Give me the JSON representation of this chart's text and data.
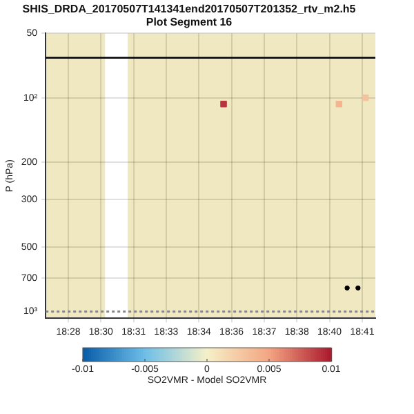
{
  "chart_data": {
    "type": "scatter",
    "title": "SHIS_DRDA_20170507T141341end20170507T201352_rtv_m2.h5",
    "subtitle": "Plot Segment 16",
    "ylabel": "P (hPa)",
    "clabel": "SO2VMR - Model SO2VMR",
    "log": "y",
    "grid": true,
    "legend": false,
    "xlim": [
      18.4555,
      18.6986
    ],
    "xticks": [
      {
        "value": 18.4722,
        "label": "18:28"
      },
      {
        "value": 18.4963,
        "label": "18:30"
      },
      {
        "value": 18.5204,
        "label": "18:31"
      },
      {
        "value": 18.5444,
        "label": "18:33"
      },
      {
        "value": 18.5685,
        "label": "18:34"
      },
      {
        "value": 18.5926,
        "label": "18:36"
      },
      {
        "value": 18.6167,
        "label": "18:37"
      },
      {
        "value": 18.6407,
        "label": "18:38"
      },
      {
        "value": 18.6648,
        "label": "18:40"
      },
      {
        "value": 18.6889,
        "label": "18:41"
      }
    ],
    "ylim": [
      1075,
      50
    ],
    "yticks": [
      50,
      {
        "value": 100,
        "label": "10²"
      },
      200,
      300,
      500,
      700,
      {
        "value": 1000,
        "label": "10³"
      }
    ],
    "clim": [
      -0.01,
      0.01
    ],
    "cticks": [
      -0.01,
      -0.005,
      0,
      0.005,
      0.01
    ],
    "bands": [
      {
        "axis": "x",
        "from": 18.4555,
        "to": 18.4993,
        "color": "#efe8c0"
      },
      {
        "axis": "x",
        "from": 18.516,
        "to": 18.6986,
        "color": "#efe8c0"
      }
    ],
    "ref_lines": [
      {
        "axis": "y",
        "value": 1000,
        "color": "#888888",
        "line_style": "dotted"
      }
    ],
    "series": [
      {
        "type": "line",
        "color": "#000000",
        "x": [
          18.4555,
          18.6986
        ],
        "values": [
          65,
          65
        ],
        "marker": "none"
      },
      {
        "marker": "square",
        "x": [
          18.5867,
          18.6718,
          18.6913
        ],
        "values": [
          107,
          107,
          100
        ],
        "cvalues": [
          0.009,
          0.004,
          0.003
        ],
        "colors": [
          "#b9353e",
          "#f4b490",
          "#f4c39e"
        ]
      },
      {
        "marker": "circle",
        "color": "#000000",
        "x": [
          18.6778,
          18.6858
        ],
        "values": [
          776,
          776
        ]
      }
    ]
  }
}
